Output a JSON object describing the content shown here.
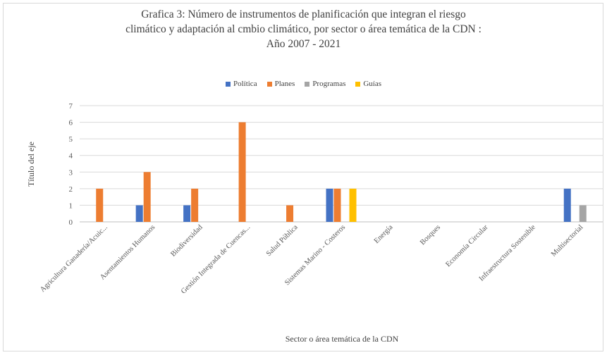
{
  "chart_data": {
    "type": "bar",
    "title_lines": [
      "Grafica 3: Número de instrumentos de planificación que integran el riesgo",
      "climático y adaptación al cmbio climático, por sector o área temática de la CDN :",
      "Año 2007 - 2021"
    ],
    "xlabel": "Sector o área temática de la CDN",
    "ylabel": "Título del eje",
    "ylim": [
      0,
      7
    ],
    "yticks": [
      0,
      1,
      2,
      3,
      4,
      5,
      6,
      7
    ],
    "grid": true,
    "legend_position": "top",
    "categories": [
      "Agricultura Ganadería/Acuic...",
      "Asentamientos Humanos",
      "Biodiversidad",
      "Gestión Integrada de Cuencas...",
      "Salud Pública",
      "Sistemas Marino - Costeros",
      "Energía",
      "Bosques",
      "Economía Circular",
      "Infraestructura Sostenible",
      "Multisectorial"
    ],
    "series": [
      {
        "name": "Política",
        "color": "#4472c4",
        "values": [
          0,
          1,
          1,
          0,
          0,
          2,
          0,
          0,
          0,
          0,
          2
        ]
      },
      {
        "name": "Planes",
        "color": "#ed7d31",
        "values": [
          2,
          3,
          2,
          6,
          1,
          2,
          0,
          0,
          0,
          0,
          0
        ]
      },
      {
        "name": "Programas",
        "color": "#a5a5a5",
        "values": [
          0,
          0,
          0,
          0,
          0,
          0,
          0,
          0,
          0,
          0,
          1
        ]
      },
      {
        "name": "Guías",
        "color": "#ffc000",
        "values": [
          0,
          0,
          0,
          0,
          0,
          2,
          0,
          0,
          0,
          0,
          0
        ]
      }
    ]
  }
}
